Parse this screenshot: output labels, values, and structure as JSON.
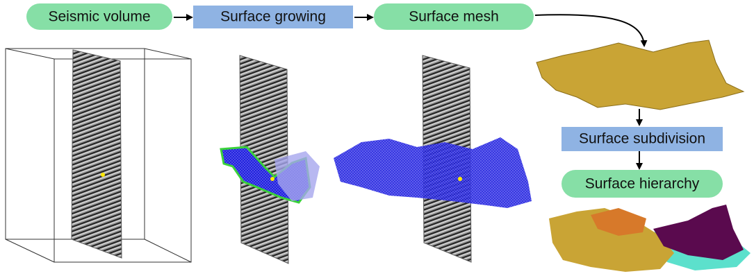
{
  "nodes": [
    {
      "label": "Seismic volume"
    },
    {
      "label": "Surface growing"
    },
    {
      "label": "Surface mesh"
    },
    {
      "label": "Surface subdivision"
    },
    {
      "label": "Surface hierarchy"
    }
  ]
}
